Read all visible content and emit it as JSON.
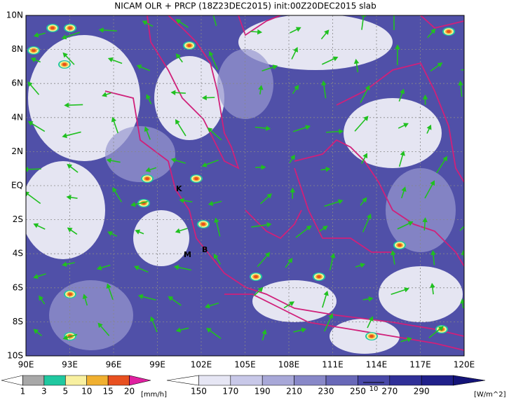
{
  "title": "NICAM OLR + PRCP (18Z23DEC2015) init:00Z20DEC2015 slab",
  "lat_labels": [
    "10N",
    "8N",
    "6N",
    "4N",
    "2N",
    "EQ",
    "2S",
    "4S",
    "6S",
    "8S",
    "10S"
  ],
  "lon_labels": [
    "90E",
    "93E",
    "96E",
    "99E",
    "102E",
    "105E",
    "108E",
    "111E",
    "114E",
    "117E",
    "120E"
  ],
  "markers": [
    "K",
    "M",
    "B"
  ],
  "vector_reference": "10",
  "precip_legend": {
    "ticks": [
      "1",
      "3",
      "5",
      "10",
      "15",
      "20"
    ],
    "unit": "[mm/h]",
    "colors": [
      "#ffffff",
      "#a8a8a8",
      "#20c8a0",
      "#f8f0a0",
      "#f0b030",
      "#e85020",
      "#e020a0"
    ]
  },
  "olr_legend": {
    "ticks": [
      "150",
      "170",
      "190",
      "210",
      "230",
      "250",
      "270",
      "290"
    ],
    "unit": "[W/m^2]",
    "colors": [
      "#ffffff",
      "#e6e6f4",
      "#c8c8e8",
      "#a8a8d8",
      "#8888c8",
      "#6868b8",
      "#4848a8",
      "#303098",
      "#20208a",
      "#141478"
    ]
  }
}
